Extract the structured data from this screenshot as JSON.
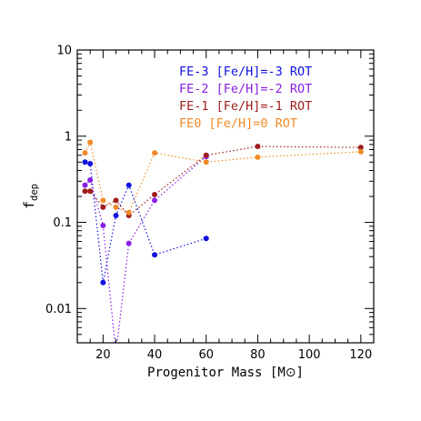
{
  "chart_data": {
    "type": "scatter",
    "xlabel": "Progenitor Mass [M",
    "xlabel_symbol": "⊙",
    "xlabel_close": "]",
    "ylabel": "f",
    "ylabel_sub": "dep",
    "xlim": [
      10,
      125
    ],
    "ylim": [
      0.004,
      10
    ],
    "yscale": "log",
    "x_ticks": [
      20,
      40,
      60,
      80,
      100,
      120
    ],
    "x_tick_labels": [
      "20",
      "40",
      "60",
      "80",
      "100",
      "120"
    ],
    "y_ticks": [
      0.01,
      0.1,
      1,
      10
    ],
    "y_tick_labels": [
      "0.01",
      "0.1",
      "1",
      "10"
    ],
    "legend_placement": "top-right",
    "series": [
      {
        "name": "FE-3 [Fe/H]=-3 ROT",
        "color": "#1010e0",
        "points": [
          [
            13,
            0.5
          ],
          [
            15,
            0.48
          ],
          [
            20,
            0.02
          ],
          [
            25,
            0.12
          ],
          [
            30,
            0.27
          ],
          [
            40,
            0.042
          ],
          [
            60,
            0.065
          ]
        ]
      },
      {
        "name": "FE-2 [Fe/H]=-2 ROT",
        "color": "#8a1ee6",
        "points": [
          [
            13,
            0.27
          ],
          [
            15,
            0.31
          ],
          [
            20,
            0.092
          ],
          [
            25,
            0.003
          ],
          [
            30,
            0.057
          ],
          [
            40,
            0.18
          ],
          [
            60,
            0.58
          ]
        ]
      },
      {
        "name": "FE-1 [Fe/H]=-1 ROT",
        "color": "#a01e1e",
        "points": [
          [
            13,
            0.23
          ],
          [
            15,
            0.23
          ],
          [
            20,
            0.15
          ],
          [
            25,
            0.18
          ],
          [
            30,
            0.12
          ],
          [
            40,
            0.21
          ],
          [
            60,
            0.6
          ],
          [
            80,
            0.76
          ],
          [
            120,
            0.74
          ]
        ]
      },
      {
        "name": "FE0 [Fe/H]=0 ROT",
        "color": "#f08a28",
        "points": [
          [
            13,
            0.64
          ],
          [
            15,
            0.85
          ],
          [
            20,
            0.18
          ],
          [
            25,
            0.15
          ],
          [
            30,
            0.13
          ],
          [
            40,
            0.64
          ],
          [
            60,
            0.5
          ],
          [
            80,
            0.57
          ],
          [
            120,
            0.66
          ]
        ]
      }
    ]
  }
}
